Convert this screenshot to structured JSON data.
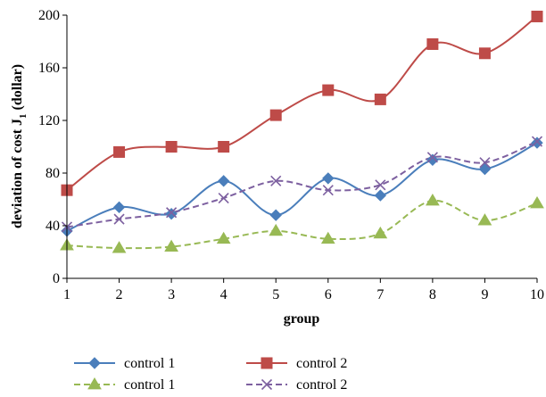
{
  "chart_data": {
    "type": "line",
    "title": "",
    "xlabel": "group",
    "ylabel": "deviation of cost J",
    "ylabel_subscript": "1",
    "ylabel_suffix": " (dollar)",
    "x": [
      1,
      2,
      3,
      4,
      5,
      6,
      7,
      8,
      9,
      10
    ],
    "xlim": [
      1,
      10
    ],
    "ylim": [
      0,
      200
    ],
    "yticks": [
      0,
      40,
      80,
      120,
      160,
      200
    ],
    "grid": false,
    "legend_position": "bottom",
    "series": [
      {
        "name": "control 1",
        "color": "#4a7ebb",
        "line": "solid",
        "marker": "diamond",
        "values": [
          36,
          54,
          49,
          74,
          48,
          76,
          63,
          90,
          83,
          103
        ]
      },
      {
        "name": "control 2",
        "color": "#be4b48",
        "line": "solid",
        "marker": "square",
        "values": [
          67,
          96,
          100,
          100,
          124,
          143,
          136,
          178,
          171,
          199
        ]
      },
      {
        "name": "control 1",
        "color": "#98b954",
        "line": "dashed",
        "marker": "triangle",
        "values": [
          25,
          23,
          24,
          30,
          36,
          30,
          34,
          59,
          44,
          57
        ]
      },
      {
        "name": "control 2",
        "color": "#7d60a0",
        "line": "dashed",
        "marker": "x",
        "values": [
          39,
          45,
          50,
          61,
          74,
          67,
          71,
          92,
          88,
          104
        ]
      }
    ]
  }
}
